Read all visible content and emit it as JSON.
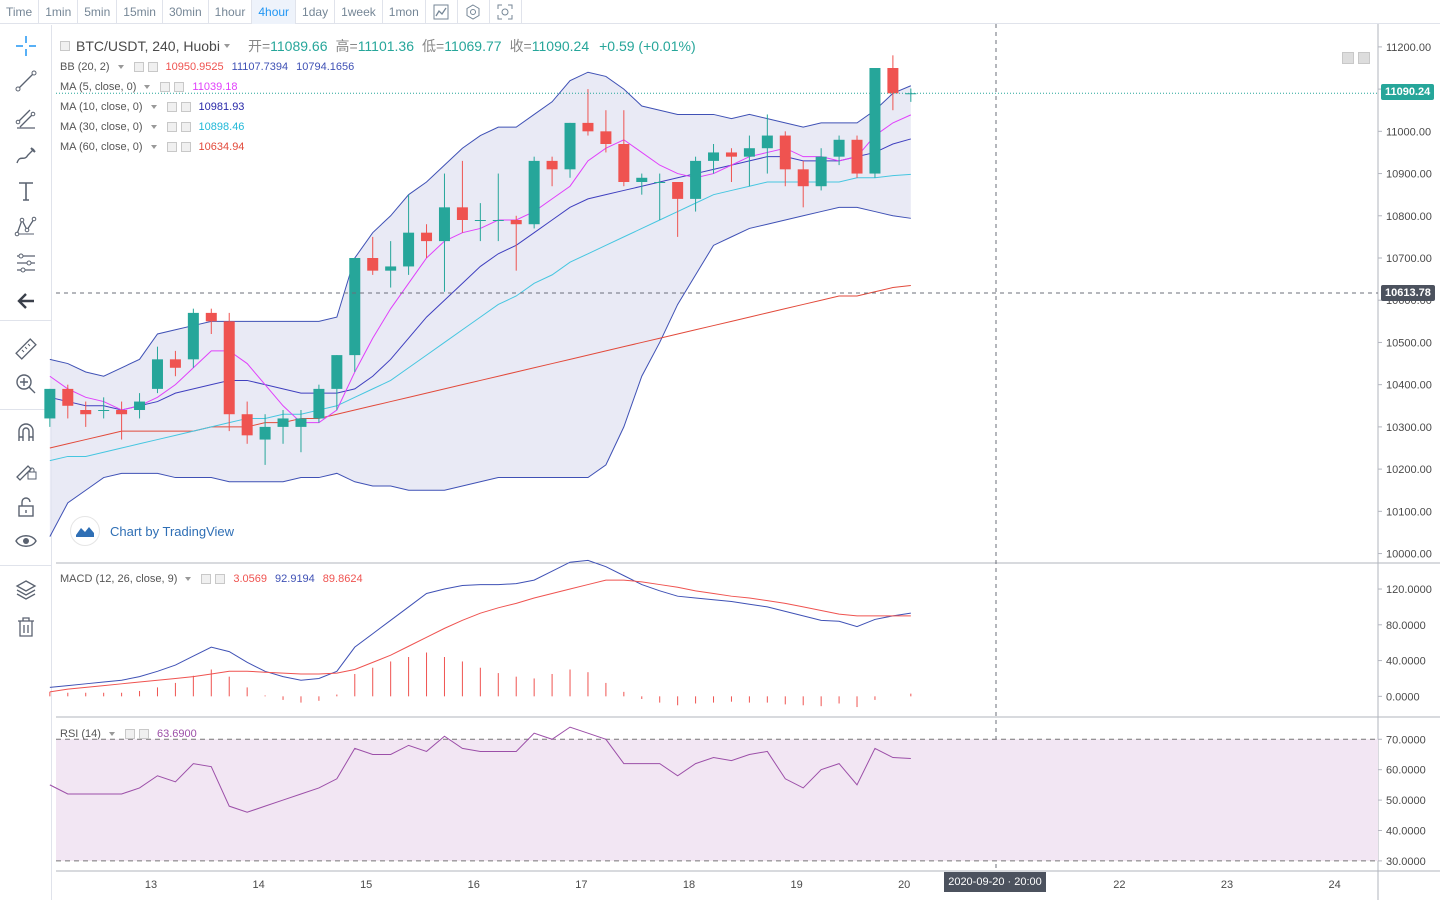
{
  "toolbar": {
    "items": [
      "Time",
      "1min",
      "5min",
      "15min",
      "30min",
      "1hour",
      "4hour",
      "1day",
      "1week",
      "1mon"
    ],
    "active": "4hour",
    "icons": [
      "chart-type-icon",
      "settings-icon",
      "screenshot-icon"
    ]
  },
  "sidebar": {
    "tools": [
      "crosshair-icon",
      "trend-line-icon",
      "fib-icon",
      "brush-icon",
      "text-icon",
      "pattern-icon",
      "prediction-icon",
      "back-arrow-icon",
      "ruler-icon",
      "zoom-in-icon",
      "magnet-icon",
      "lock-drawing-icon",
      "unlock-icon",
      "eye-icon",
      "layers-icon",
      "trash-icon"
    ]
  },
  "header": {
    "symbol": "BTC/USDT, 240, Huobi",
    "open_label": "开=",
    "open": "11089.66",
    "high_label": "高=",
    "high": "11101.36",
    "low_label": "低=",
    "low": "11069.77",
    "close_label": "收=",
    "close": "11090.24",
    "change": "+0.59 (+0.01%)"
  },
  "indicators": {
    "bb": {
      "label": "BB (20, 2)",
      "v1": "10950.9525",
      "v2": "11107.7394",
      "v3": "10794.1656"
    },
    "ma5": {
      "label": "MA (5, close, 0)",
      "value": "11039.18"
    },
    "ma10": {
      "label": "MA (10, close, 0)",
      "value": "10981.93"
    },
    "ma30": {
      "label": "MA (30, close, 0)",
      "value": "10898.46"
    },
    "ma60": {
      "label": "MA (60, close, 0)",
      "value": "10634.94"
    },
    "macd": {
      "label": "MACD (12, 26, close, 9)",
      "hist": "3.0569",
      "macd": "92.9194",
      "signal": "89.8624"
    },
    "rsi": {
      "label": "RSI (14)",
      "value": "63.6900"
    }
  },
  "branding": {
    "text": "Chart by TradingView"
  },
  "price_tags": {
    "last": "11090.24",
    "crosshair": "10613.78"
  },
  "crosshair_date": "2020-09-20 · 20:00",
  "colors": {
    "up": "#26a69a",
    "down": "#ef5350",
    "bb": "#3f51b5",
    "ma5": "#e040fb",
    "ma10": "#3f3fbf",
    "ma30": "#46c6e0",
    "ma60": "#e24a3b",
    "macd_line": "#3f51b5",
    "signal_line": "#ef5350",
    "rsi": "#9c4fa8",
    "band_fill": "#e4e5f2",
    "rsi_band": "#f2e6f3"
  },
  "chart_data": {
    "type": "candlestick",
    "price_axis": {
      "ticks": [
        10000,
        10100,
        10200,
        10300,
        10400,
        10500,
        10600,
        10700,
        10800,
        10900,
        11000,
        11100,
        11200
      ],
      "labels": [
        "10000.00",
        "10100.00",
        "10200.00",
        "10300.00",
        "10400.00",
        "10500.00",
        "10600.00",
        "10700.00",
        "10800.00",
        "10900.00",
        "11000.00",
        "11100.00",
        "11200.00"
      ]
    },
    "time_axis": {
      "labels": [
        "13",
        "14",
        "15",
        "16",
        "17",
        "18",
        "19",
        "20",
        "22",
        "23",
        "24"
      ],
      "days": [
        13,
        14,
        15,
        16,
        17,
        18,
        19,
        20,
        22,
        23,
        24
      ]
    },
    "day_start": 12.0,
    "bar_days_per_candle": 0.1667,
    "candles": [
      [
        10320,
        10390,
        10300,
        10390
      ],
      [
        10390,
        10400,
        10320,
        10350
      ],
      [
        10340,
        10360,
        10300,
        10330
      ],
      [
        10340,
        10370,
        10320,
        10340
      ],
      [
        10340,
        10360,
        10270,
        10330
      ],
      [
        10340,
        10380,
        10320,
        10360
      ],
      [
        10390,
        10490,
        10380,
        10460
      ],
      [
        10460,
        10480,
        10420,
        10440
      ],
      [
        10460,
        10580,
        10440,
        10570
      ],
      [
        10570,
        10580,
        10520,
        10550
      ],
      [
        10550,
        10570,
        10290,
        10330
      ],
      [
        10330,
        10360,
        10260,
        10280
      ],
      [
        10270,
        10330,
        10210,
        10300
      ],
      [
        10300,
        10340,
        10260,
        10320
      ],
      [
        10300,
        10340,
        10240,
        10320
      ],
      [
        10320,
        10400,
        10310,
        10390
      ],
      [
        10390,
        10470,
        10340,
        10470
      ],
      [
        10470,
        10700,
        10430,
        10700
      ],
      [
        10700,
        10750,
        10660,
        10670
      ],
      [
        10670,
        10740,
        10630,
        10680
      ],
      [
        10680,
        10850,
        10660,
        10760
      ],
      [
        10760,
        10780,
        10700,
        10740
      ],
      [
        10740,
        10900,
        10620,
        10820
      ],
      [
        10820,
        10930,
        10760,
        10790
      ],
      [
        10790,
        10830,
        10740,
        10790
      ],
      [
        10790,
        10900,
        10740,
        10790
      ],
      [
        10790,
        10800,
        10670,
        10780
      ],
      [
        10780,
        10940,
        10770,
        10930
      ],
      [
        10930,
        10940,
        10870,
        10910
      ],
      [
        10910,
        11020,
        10890,
        11020
      ],
      [
        11020,
        11100,
        10990,
        11000
      ],
      [
        11000,
        11050,
        10950,
        10970
      ],
      [
        10970,
        11050,
        10870,
        10880
      ],
      [
        10880,
        10900,
        10850,
        10890
      ],
      [
        10880,
        10900,
        10790,
        10880
      ],
      [
        10880,
        10880,
        10750,
        10840
      ],
      [
        10840,
        10940,
        10810,
        10930
      ],
      [
        10930,
        10970,
        10900,
        10950
      ],
      [
        10950,
        10960,
        10880,
        10940
      ],
      [
        10940,
        10990,
        10870,
        10960
      ],
      [
        10960,
        11040,
        10900,
        10990
      ],
      [
        10990,
        11000,
        10870,
        10910
      ],
      [
        10910,
        10930,
        10820,
        10870
      ],
      [
        10870,
        10960,
        10860,
        10940
      ],
      [
        10940,
        10990,
        10920,
        10980
      ],
      [
        10980,
        10990,
        10890,
        10900
      ],
      [
        10900,
        11150,
        10890,
        11150
      ],
      [
        11150,
        11180,
        11050,
        11090
      ],
      [
        11089.66,
        11101.36,
        11069.77,
        11090.24
      ]
    ],
    "bb_upper": [
      10460,
      10450,
      10430,
      10420,
      10440,
      10460,
      10520,
      10530,
      10540,
      10550,
      10550,
      10550,
      10550,
      10550,
      10550,
      10550,
      10560,
      10700,
      10760,
      10800,
      10850,
      10880,
      10920,
      10960,
      10990,
      11010,
      11010,
      11040,
      11070,
      11120,
      11140,
      11130,
      11100,
      11060,
      11050,
      11040,
      11040,
      11040,
      11030,
      11040,
      11030,
      11020,
      11010,
      11020,
      11020,
      11020,
      11050,
      11090,
      11108
    ],
    "bb_lower": [
      10040,
      10120,
      10150,
      10180,
      10190,
      10190,
      10190,
      10180,
      10180,
      10180,
      10170,
      10170,
      10170,
      10170,
      10180,
      10180,
      10190,
      10170,
      10160,
      10160,
      10150,
      10150,
      10150,
      10160,
      10170,
      10180,
      10180,
      10180,
      10180,
      10180,
      10180,
      10210,
      10300,
      10420,
      10500,
      10590,
      10660,
      10730,
      10750,
      10770,
      10780,
      10790,
      10800,
      10810,
      10820,
      10820,
      10810,
      10800,
      10794
    ],
    "ma5": [
      10420,
      10390,
      10370,
      10360,
      10340,
      10350,
      10370,
      10400,
      10440,
      10480,
      10480,
      10450,
      10400,
      10350,
      10310,
      10310,
      10340,
      10430,
      10510,
      10580,
      10640,
      10700,
      10740,
      10760,
      10770,
      10790,
      10790,
      10810,
      10840,
      10870,
      10930,
      10960,
      10980,
      10950,
      10920,
      10900,
      10890,
      10900,
      10920,
      10940,
      10950,
      10960,
      10940,
      10940,
      10930,
      10940,
      10990,
      11020,
      11039
    ],
    "ma10": [
      10370,
      10360,
      10350,
      10350,
      10340,
      10350,
      10360,
      10380,
      10390,
      10400,
      10410,
      10410,
      10400,
      10390,
      10380,
      10380,
      10380,
      10390,
      10420,
      10460,
      10510,
      10560,
      10600,
      10640,
      10680,
      10710,
      10730,
      10760,
      10790,
      10820,
      10840,
      10850,
      10860,
      10870,
      10880,
      10890,
      10900,
      10910,
      10920,
      10930,
      10940,
      10940,
      10930,
      10930,
      10930,
      10940,
      10950,
      10970,
      10982
    ],
    "ma30": [
      10220,
      10230,
      10230,
      10240,
      10250,
      10260,
      10270,
      10280,
      10290,
      10300,
      10310,
      10320,
      10320,
      10330,
      10330,
      10340,
      10350,
      10370,
      10390,
      10410,
      10440,
      10470,
      10500,
      10530,
      10560,
      10590,
      10610,
      10640,
      10660,
      10690,
      10710,
      10730,
      10750,
      10770,
      10790,
      10810,
      10830,
      10850,
      10860,
      10870,
      10880,
      10880,
      10880,
      10880,
      10880,
      10890,
      10890,
      10895,
      10898
    ],
    "ma60": [
      10250,
      10260,
      10270,
      10280,
      10290,
      10290,
      10290,
      10290,
      10290,
      10300,
      10300,
      10300,
      10310,
      10310,
      10320,
      10320,
      10330,
      10340,
      10350,
      10360,
      10370,
      10380,
      10390,
      10400,
      10410,
      10420,
      10430,
      10440,
      10450,
      10460,
      10470,
      10480,
      10490,
      10500,
      10510,
      10520,
      10530,
      10540,
      10550,
      10560,
      10570,
      10580,
      10590,
      10600,
      10610,
      10610,
      10620,
      10630,
      10635
    ],
    "macd_axis": {
      "ticks": [
        0,
        40,
        80,
        120
      ],
      "labels": [
        "0.0000",
        "40.0000",
        "80.0000",
        "120.0000"
      ]
    },
    "macd": [
      10,
      12,
      14,
      16,
      18,
      22,
      28,
      35,
      45,
      55,
      50,
      38,
      28,
      22,
      18,
      20,
      28,
      55,
      70,
      85,
      100,
      115,
      120,
      124,
      125,
      125,
      126,
      130,
      140,
      150,
      152,
      145,
      135,
      125,
      118,
      112,
      110,
      108,
      106,
      103,
      100,
      95,
      90,
      85,
      84,
      78,
      86,
      90,
      93
    ],
    "signal": [
      5,
      8,
      10,
      12,
      14,
      16,
      18,
      20,
      22,
      25,
      28,
      28,
      27,
      26,
      25,
      25,
      26,
      30,
      38,
      46,
      56,
      66,
      76,
      85,
      93,
      99,
      104,
      110,
      115,
      120,
      125,
      130,
      130,
      128,
      125,
      122,
      118,
      115,
      112,
      110,
      107,
      104,
      100,
      96,
      92,
      90,
      90,
      90,
      90
    ],
    "rsi_axis": {
      "ticks": [
        30,
        40,
        50,
        60,
        70
      ],
      "labels": [
        "30.0000",
        "40.0000",
        "50.0000",
        "60.0000",
        "70.0000"
      ]
    },
    "rsi": [
      55,
      52,
      52,
      52,
      52,
      54,
      58,
      56,
      62,
      61,
      48,
      46,
      48,
      50,
      52,
      54,
      57,
      67,
      65,
      65,
      68,
      66,
      71,
      67,
      66,
      66,
      66,
      72,
      70,
      74,
      72,
      70,
      62,
      62,
      62,
      58,
      62,
      64,
      63,
      65,
      66,
      57,
      54,
      60,
      62,
      55,
      67,
      64,
      63.69
    ]
  }
}
